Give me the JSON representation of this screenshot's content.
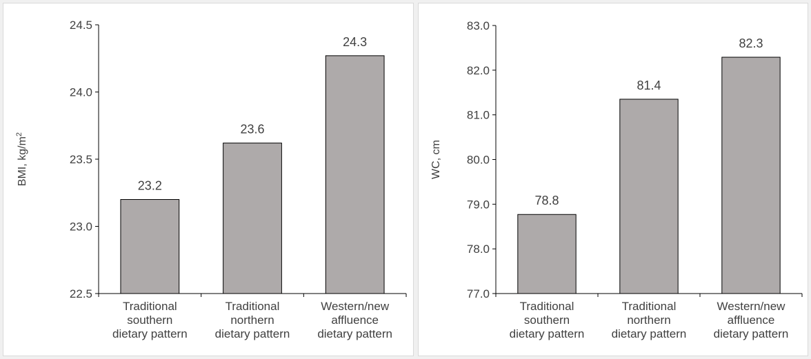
{
  "chart_data": [
    {
      "type": "bar",
      "categories": [
        [
          "Traditional",
          "southern",
          "dietary pattern"
        ],
        [
          "Traditional",
          "northern",
          "dietary pattern"
        ],
        [
          "Western/new",
          "affluence",
          "dietary pattern"
        ]
      ],
      "values": [
        23.2,
        23.62,
        24.27
      ],
      "data_labels": [
        "23.2",
        "23.6",
        "24.3"
      ],
      "ylabel": "BMI, kg/m",
      "ylabel_superscript": "2",
      "ylim": [
        22.5,
        24.5
      ],
      "yticks": [
        "22.5",
        "23.0",
        "23.5",
        "24.0",
        "24.5"
      ],
      "grid": false,
      "bar_color": "#aeaaaa"
    },
    {
      "type": "bar",
      "categories": [
        [
          "Traditional",
          "southern",
          "dietary pattern"
        ],
        [
          "Traditional",
          "northern",
          "dietary pattern"
        ],
        [
          "Western/new",
          "affluence",
          "dietary pattern"
        ]
      ],
      "values": [
        78.77,
        81.35,
        82.29
      ],
      "data_labels": [
        "78.8",
        "81.4",
        "82.3"
      ],
      "ylabel": "WC, cm",
      "ylim": [
        77.0,
        83.0
      ],
      "yticks": [
        "77.0",
        "78.0",
        "79.0",
        "80.0",
        "81.0",
        "82.0",
        "83.0"
      ],
      "grid": false,
      "bar_color": "#aeaaaa"
    }
  ]
}
